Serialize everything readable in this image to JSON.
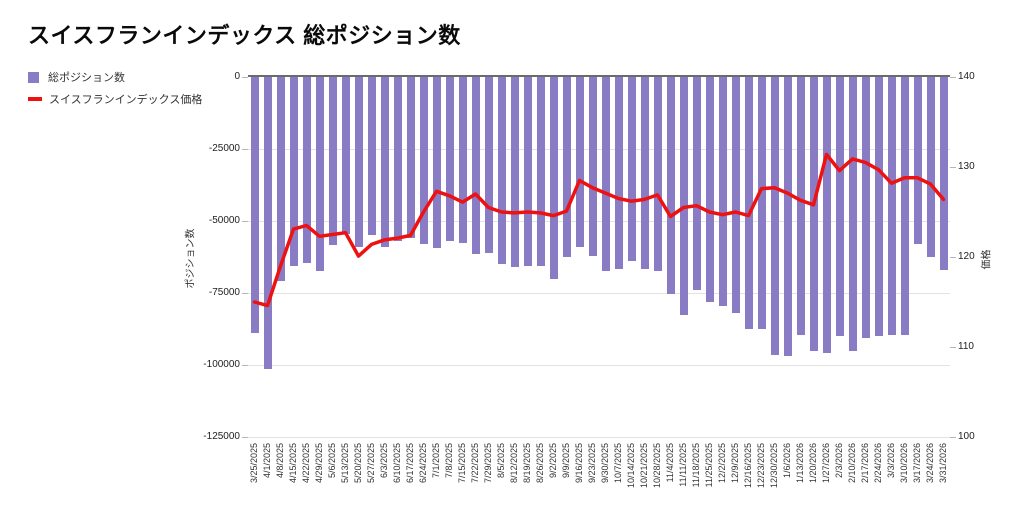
{
  "chart_data": {
    "type": "bar+line",
    "title": "スイスフランインデックス 総ポジション数",
    "legend": [
      {
        "label": "総ポジション数",
        "type": "bar",
        "color": "#8a7cc4"
      },
      {
        "label": "スイスフランインデックス価格",
        "type": "line",
        "color": "#ee1111"
      }
    ],
    "legend_position": "top-left",
    "grid": true,
    "left_axis_label": "ポジション数",
    "right_axis_label": "価格",
    "left_axis_ticks": [
      "0",
      "-25000",
      "-50000",
      "-75000",
      "-100000",
      "-125000"
    ],
    "right_axis_ticks": [
      "140",
      "130",
      "120",
      "110",
      "100"
    ],
    "left_ylim": [
      -125000,
      0
    ],
    "right_ylim": [
      100,
      140
    ],
    "categories": [
      "3/25/2025",
      "4/1/2025",
      "4/8/2025",
      "4/15/2025",
      "4/22/2025",
      "4/29/2025",
      "5/6/2025",
      "5/13/2025",
      "5/20/2025",
      "5/27/2025",
      "6/3/2025",
      "6/10/2025",
      "6/17/2025",
      "6/24/2025",
      "7/1/2025",
      "7/8/2025",
      "7/15/2025",
      "7/22/2025",
      "7/29/2025",
      "8/5/2025",
      "8/12/2025",
      "8/19/2025",
      "8/26/2025",
      "9/2/2025",
      "9/9/2025",
      "9/16/2025",
      "9/23/2025",
      "9/30/2025",
      "10/7/2025",
      "10/14/2025",
      "10/21/2025",
      "10/28/2025",
      "11/4/2025",
      "11/11/2025",
      "11/18/2025",
      "11/25/2025",
      "12/2/2025",
      "12/9/2025",
      "12/16/2025",
      "12/23/2025",
      "12/30/2025",
      "1/6/2026",
      "1/13/2026",
      "1/20/2026",
      "1/27/2026",
      "2/3/2026",
      "2/10/2026",
      "2/17/2026",
      "2/24/2026",
      "3/3/2026",
      "3/10/2026",
      "3/17/2026",
      "3/24/2026",
      "3/31/2026"
    ],
    "series": [
      {
        "name": "総ポジション数",
        "type": "bar",
        "axis": "left",
        "color": "#8a7cc4",
        "values": [
          -89000,
          -101500,
          -71000,
          -65500,
          -64500,
          -67500,
          -58500,
          -54500,
          -59000,
          -55000,
          -59000,
          -57000,
          -56000,
          -58000,
          -59500,
          -57000,
          -57500,
          -61500,
          -61000,
          -65000,
          -66000,
          -65500,
          -65500,
          -70000,
          -62500,
          -59000,
          -62000,
          -67500,
          -66500,
          -64000,
          -66500,
          -67500,
          -75500,
          -82500,
          -74000,
          -78000,
          -79500,
          -82000,
          -87500,
          -87500,
          -96500,
          -97000,
          -89500,
          -95000,
          -96000,
          -90000,
          -95000,
          -90500,
          -90000,
          -89500,
          -89500,
          -58000,
          -62500,
          -67000
        ]
      },
      {
        "name": "スイスフランインデックス価格",
        "type": "line",
        "axis": "right",
        "color": "#ee1111",
        "values": [
          115.0,
          114.6,
          119.0,
          123.1,
          123.5,
          122.3,
          122.5,
          122.7,
          120.1,
          121.4,
          121.9,
          122.1,
          122.4,
          125.0,
          127.3,
          126.8,
          126.1,
          127.0,
          125.5,
          125.0,
          124.9,
          125.0,
          124.9,
          124.6,
          125.1,
          128.5,
          127.7,
          127.1,
          126.5,
          126.2,
          126.4,
          126.9,
          124.5,
          125.5,
          125.7,
          125.0,
          124.7,
          125.0,
          124.6,
          127.6,
          127.7,
          127.1,
          126.3,
          125.8,
          131.4,
          129.6,
          130.9,
          130.5,
          129.7,
          128.2,
          128.8,
          128.8,
          128.1,
          126.4
        ]
      }
    ]
  }
}
